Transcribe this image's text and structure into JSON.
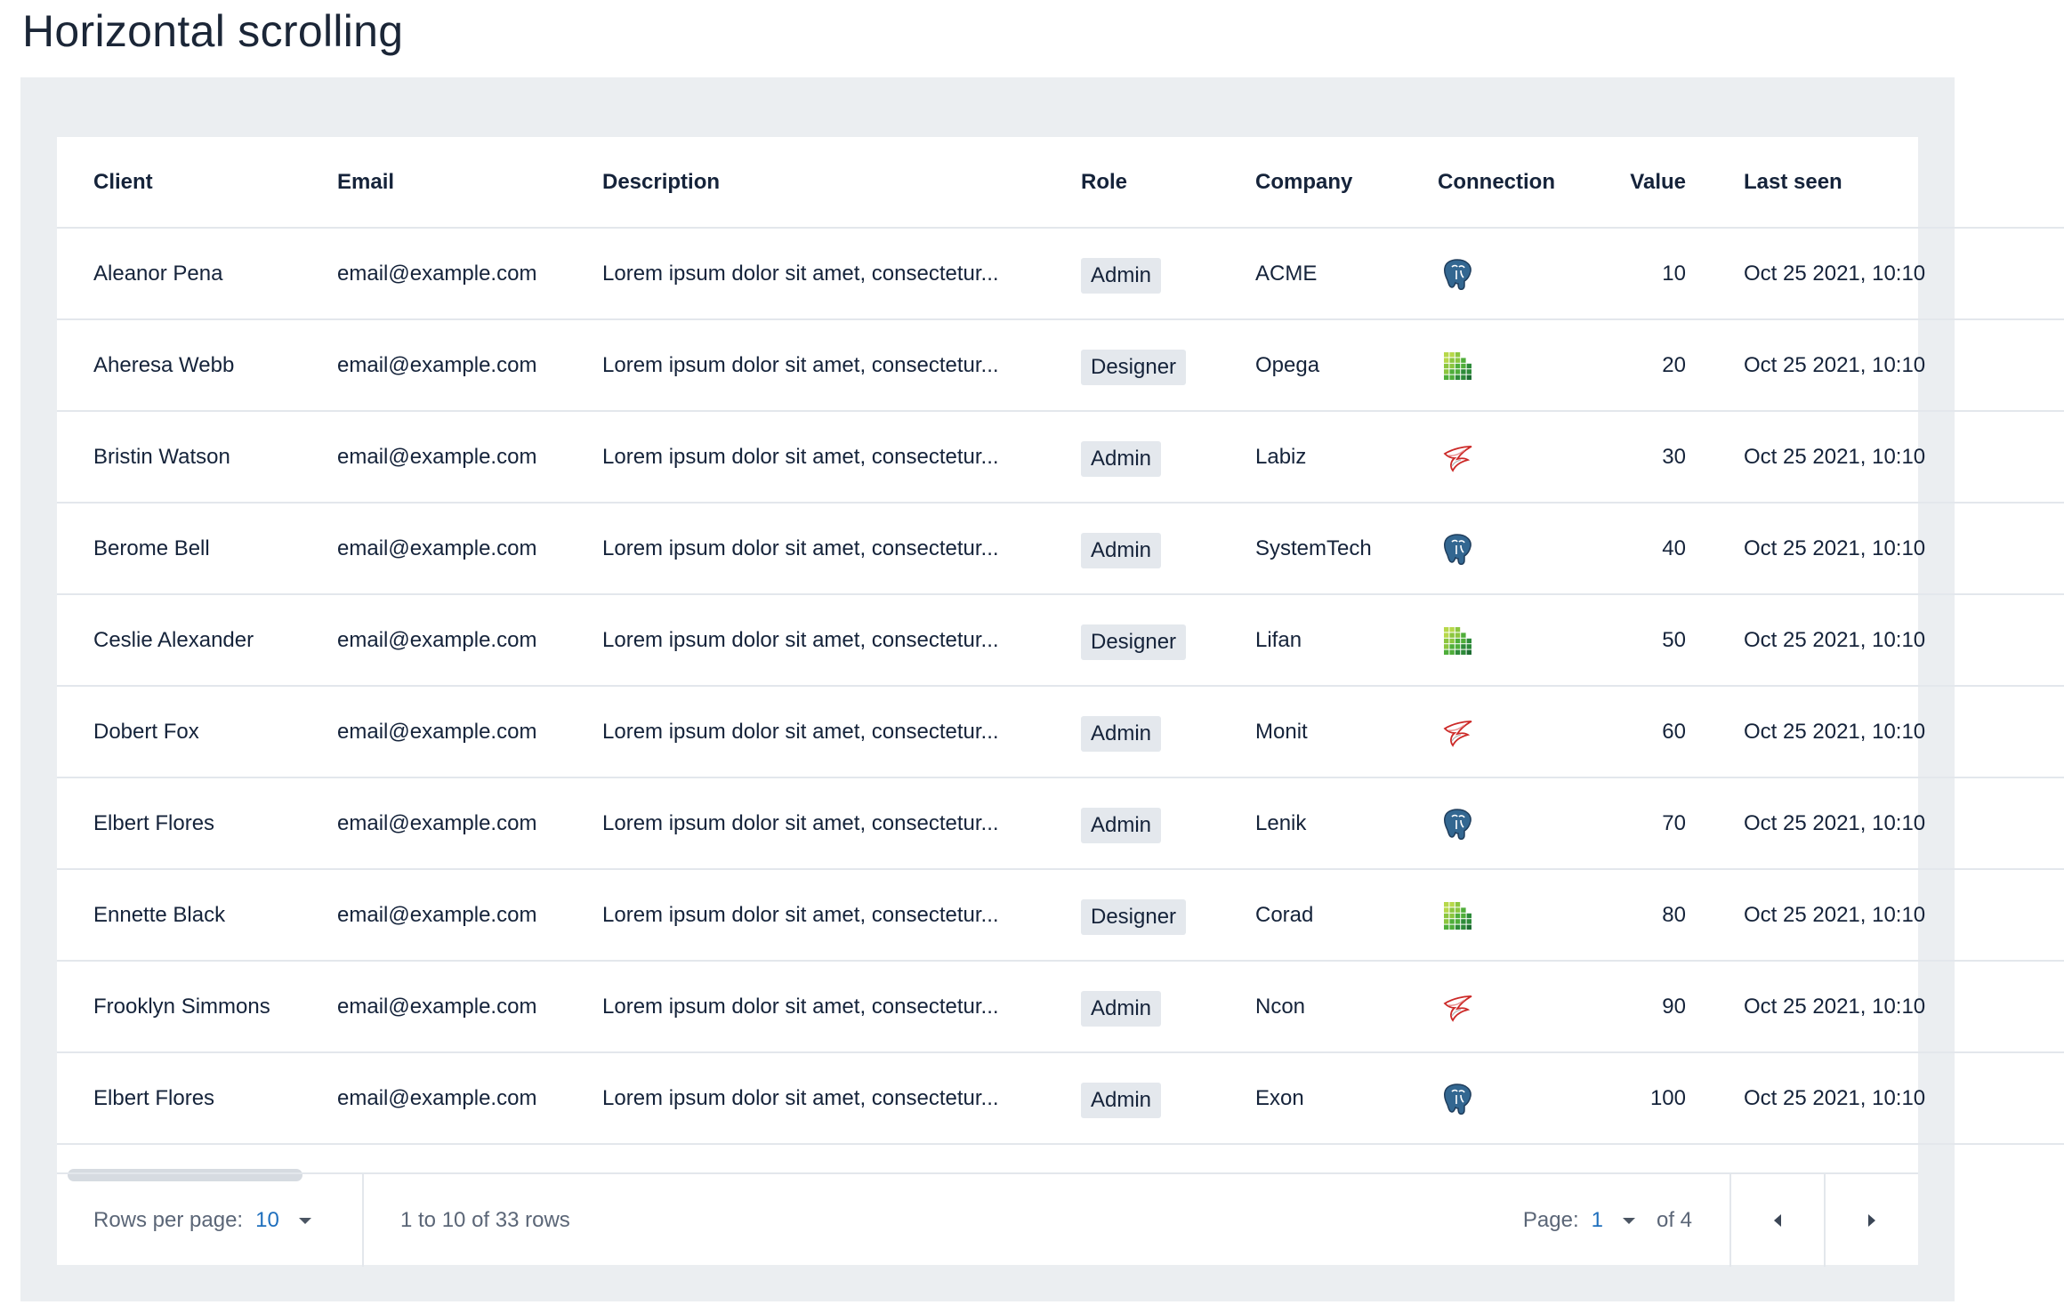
{
  "page": {
    "title": "Horizontal scrolling"
  },
  "table": {
    "columns": [
      "Client",
      "Email",
      "Description",
      "Role",
      "Company",
      "Connection",
      "Value",
      "Last seen"
    ],
    "rows": [
      {
        "client": "Aleanor Pena",
        "email": "email@example.com",
        "description": "Lorem ipsum dolor sit amet, consectetur...",
        "role": "Admin",
        "company": "ACME",
        "connection": "postgres-icon",
        "value": "10",
        "last_seen": "Oct 25  2021, 10:10"
      },
      {
        "client": "Aheresa Webb",
        "email": "email@example.com",
        "description": "Lorem ipsum dolor sit amet, consectetur...",
        "role": "Designer",
        "company": "Opega",
        "connection": "grid-db-icon",
        "value": "20",
        "last_seen": "Oct 25  2021, 10:10"
      },
      {
        "client": "Bristin Watson",
        "email": "email@example.com",
        "description": "Lorem ipsum dolor sit amet, consectetur...",
        "role": "Admin",
        "company": "Labiz",
        "connection": "sqlserver-icon",
        "value": "30",
        "last_seen": "Oct 25  2021, 10:10"
      },
      {
        "client": "Berome Bell",
        "email": "email@example.com",
        "description": "Lorem ipsum dolor sit amet, consectetur...",
        "role": "Admin",
        "company": "SystemTech",
        "connection": "postgres-icon",
        "value": "40",
        "last_seen": "Oct 25  2021, 10:10"
      },
      {
        "client": "Ceslie Alexander",
        "email": "email@example.com",
        "description": "Lorem ipsum dolor sit amet, consectetur...",
        "role": "Designer",
        "company": "Lifan",
        "connection": "grid-db-icon",
        "value": "50",
        "last_seen": "Oct 25  2021, 10:10"
      },
      {
        "client": "Dobert Fox",
        "email": "email@example.com",
        "description": "Lorem ipsum dolor sit amet, consectetur...",
        "role": "Admin",
        "company": "Monit",
        "connection": "sqlserver-icon",
        "value": "60",
        "last_seen": "Oct 25  2021, 10:10"
      },
      {
        "client": "Elbert Flores",
        "email": "email@example.com",
        "description": "Lorem ipsum dolor sit amet, consectetur...",
        "role": "Admin",
        "company": "Lenik",
        "connection": "postgres-icon",
        "value": "70",
        "last_seen": "Oct 25  2021, 10:10"
      },
      {
        "client": "Ennette Black",
        "email": "email@example.com",
        "description": "Lorem ipsum dolor sit amet, consectetur...",
        "role": "Designer",
        "company": "Corad",
        "connection": "grid-db-icon",
        "value": "80",
        "last_seen": "Oct 25  2021, 10:10"
      },
      {
        "client": "Frooklyn Simmons",
        "email": "email@example.com",
        "description": "Lorem ipsum dolor sit amet, consectetur...",
        "role": "Admin",
        "company": "Ncon",
        "connection": "sqlserver-icon",
        "value": "90",
        "last_seen": "Oct 25  2021, 10:10"
      },
      {
        "client": "Elbert Flores",
        "email": "email@example.com",
        "description": "Lorem ipsum dolor sit amet, consectetur...",
        "role": "Admin",
        "company": "Exon",
        "connection": "postgres-icon",
        "value": "100",
        "last_seen": "Oct 25  2021, 10:10"
      }
    ]
  },
  "footer": {
    "rows_per_page_label": "Rows per page:",
    "rows_per_page_value": "10",
    "range_text": "1 to 10 of 33 rows",
    "page_label": "Page:",
    "page_value": "1",
    "page_total": "of 4",
    "prev_icon": "caret-left-icon",
    "next_icon": "caret-right-icon"
  },
  "colors": {
    "stage_bg": "#ebeef1",
    "link": "#1f6fbd",
    "badge_bg": "#e4e8ed",
    "postgres_blue": "#336791",
    "sqlserver_red": "#cc2927"
  }
}
